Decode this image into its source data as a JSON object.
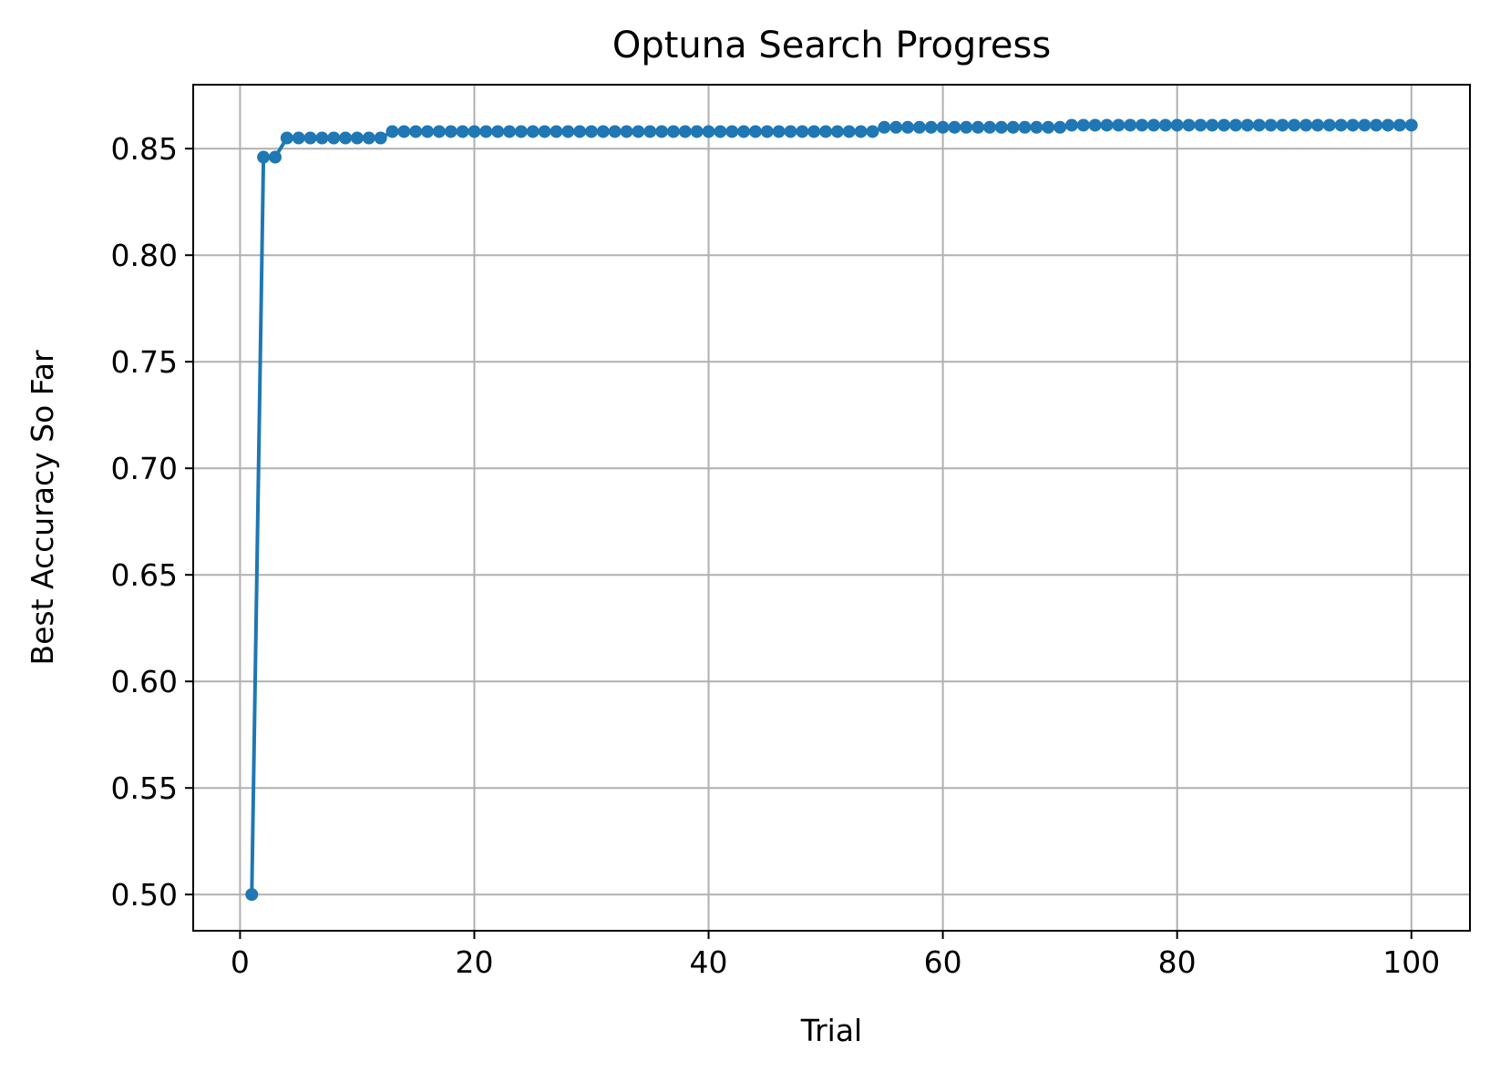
{
  "chart_data": {
    "type": "line",
    "title": "Optuna Search Progress",
    "xlabel": "Trial",
    "ylabel": "Best Accuracy So Far",
    "xlim": [
      -4,
      105
    ],
    "ylim": [
      0.483,
      0.88
    ],
    "xticks": [
      0,
      20,
      40,
      60,
      80,
      100
    ],
    "yticks": [
      0.5,
      0.55,
      0.6,
      0.65,
      0.7,
      0.75,
      0.8,
      0.85
    ],
    "xtick_labels": [
      "0",
      "20",
      "40",
      "60",
      "80",
      "100"
    ],
    "ytick_labels": [
      "0.50",
      "0.55",
      "0.60",
      "0.65",
      "0.70",
      "0.75",
      "0.80",
      "0.85"
    ],
    "grid": true,
    "marker": "circle",
    "color": "#1f77b4",
    "series": [
      {
        "x": [
          1,
          2,
          3,
          4,
          5,
          6,
          7,
          8,
          9,
          10,
          11,
          12,
          13,
          14,
          15,
          16,
          17,
          18,
          19,
          20,
          21,
          22,
          23,
          24,
          25,
          26,
          27,
          28,
          29,
          30,
          31,
          32,
          33,
          34,
          35,
          36,
          37,
          38,
          39,
          40,
          41,
          42,
          43,
          44,
          45,
          46,
          47,
          48,
          49,
          50,
          51,
          52,
          53,
          54,
          55,
          56,
          57,
          58,
          59,
          60,
          61,
          62,
          63,
          64,
          65,
          66,
          67,
          68,
          69,
          70,
          71,
          72,
          73,
          74,
          75,
          76,
          77,
          78,
          79,
          80,
          81,
          82,
          83,
          84,
          85,
          86,
          87,
          88,
          89,
          90,
          91,
          92,
          93,
          94,
          95,
          96,
          97,
          98,
          99,
          100
        ],
        "values": [
          0.5,
          0.846,
          0.846,
          0.855,
          0.855,
          0.855,
          0.855,
          0.855,
          0.855,
          0.855,
          0.855,
          0.855,
          0.858,
          0.858,
          0.858,
          0.858,
          0.858,
          0.858,
          0.858,
          0.858,
          0.858,
          0.858,
          0.858,
          0.858,
          0.858,
          0.858,
          0.858,
          0.858,
          0.858,
          0.858,
          0.858,
          0.858,
          0.858,
          0.858,
          0.858,
          0.858,
          0.858,
          0.858,
          0.858,
          0.858,
          0.858,
          0.858,
          0.858,
          0.858,
          0.858,
          0.858,
          0.858,
          0.858,
          0.858,
          0.858,
          0.858,
          0.858,
          0.858,
          0.858,
          0.86,
          0.86,
          0.86,
          0.86,
          0.86,
          0.86,
          0.86,
          0.86,
          0.86,
          0.86,
          0.86,
          0.86,
          0.86,
          0.86,
          0.86,
          0.86,
          0.861,
          0.861,
          0.861,
          0.861,
          0.861,
          0.861,
          0.861,
          0.861,
          0.861,
          0.861,
          0.861,
          0.861,
          0.861,
          0.861,
          0.861,
          0.861,
          0.861,
          0.861,
          0.861,
          0.861,
          0.861,
          0.861,
          0.861,
          0.861,
          0.861,
          0.861,
          0.861,
          0.861,
          0.861,
          0.861
        ]
      }
    ]
  }
}
